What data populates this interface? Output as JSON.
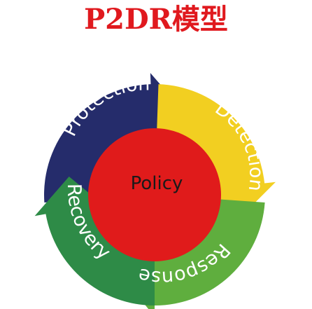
{
  "title": "P2DR模型",
  "colors": {
    "title": "#e0191e",
    "protection": "#252c6b",
    "detection": "#f2cf21",
    "response": "#5fae3e",
    "recovery": "#2e8b47",
    "policy": "#e01b1b"
  },
  "phases": [
    {
      "id": "protection",
      "label": "Protection"
    },
    {
      "id": "detection",
      "label": "Detection"
    },
    {
      "id": "response",
      "label": "Response"
    },
    {
      "id": "recovery",
      "label": "Recovery"
    }
  ],
  "center": {
    "label": "Policy"
  }
}
